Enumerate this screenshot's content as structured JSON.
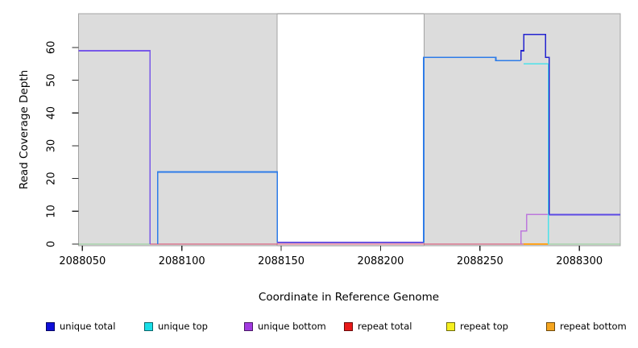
{
  "chart_data": {
    "type": "line",
    "title": "",
    "xlabel": "Coordinate in Reference Genome",
    "ylabel": "Read Coverage Depth",
    "xlim": [
      2088048,
      2088320.6
    ],
    "ylim": [
      0,
      70.3
    ],
    "grid": false,
    "legend_position": "bottom",
    "x_axis": {
      "ticks": [
        2088050,
        2088100,
        2088150,
        2088200,
        2088250,
        2088300
      ],
      "tick_labels": [
        "2088050",
        "2088100",
        "2088150",
        "2088200",
        "2088250",
        "2088300"
      ]
    },
    "y_axis": {
      "ticks": [
        0,
        10,
        20,
        30,
        40,
        50,
        60
      ],
      "tick_labels": [
        "0",
        "10",
        "20",
        "30",
        "40",
        "50",
        "60"
      ]
    },
    "masked_regions": [
      {
        "x0": 2088048,
        "x1": 2088148,
        "fill": "#dcdcdc",
        "stroke": "#a3a3a3"
      },
      {
        "x0": 2088222,
        "x1": 2088320.6,
        "fill": "#dcdcdc",
        "stroke": "#a3a3a3"
      }
    ],
    "series": [
      {
        "name": "unique total",
        "runs_x0_x1_depth": [
          [
            2088048,
            2088084,
            59
          ],
          [
            2088084,
            2088088,
            0
          ],
          [
            2088088,
            2088148,
            22
          ],
          [
            2088148,
            2088222,
            0
          ],
          [
            2088222,
            2088258,
            57
          ],
          [
            2088258,
            2088271,
            56
          ],
          [
            2088271,
            2088272,
            59
          ],
          [
            2088272,
            2088283,
            64
          ],
          [
            2088283,
            2088285,
            57
          ],
          [
            2088285,
            2088321,
            9
          ]
        ]
      },
      {
        "name": "unique top",
        "runs_x0_x1_depth": [
          [
            2088048,
            2088088,
            0
          ],
          [
            2088088,
            2088148,
            22
          ],
          [
            2088148,
            2088222,
            0
          ],
          [
            2088222,
            2088258,
            57
          ],
          [
            2088258,
            2088272,
            56
          ],
          [
            2088272,
            2088284,
            55
          ],
          [
            2088284,
            2088321,
            0
          ]
        ]
      },
      {
        "name": "unique bottom",
        "runs_x0_x1_depth": [
          [
            2088048,
            2088084,
            59
          ],
          [
            2088084,
            2088271,
            0
          ],
          [
            2088271,
            2088273,
            4
          ],
          [
            2088273,
            2088321,
            9
          ]
        ]
      },
      {
        "name": "repeat total",
        "runs_x0_x1_depth": [
          [
            2088048,
            2088321,
            0
          ]
        ]
      },
      {
        "name": "repeat top",
        "runs_x0_x1_depth": [
          [
            2088048,
            2088321,
            0
          ]
        ]
      },
      {
        "name": "repeat bottom",
        "runs_x0_x1_depth": [
          [
            2088048,
            2088321,
            0
          ]
        ]
      }
    ],
    "render_lines": [
      {
        "name": "baseline-left-green",
        "color": "#8fcf96",
        "w": 1.4,
        "pts": [
          [
            2088048,
            0
          ],
          [
            2088084,
            0
          ]
        ]
      },
      {
        "name": "baseline-right-green",
        "color": "#8fcf96",
        "w": 1.4,
        "pts": [
          [
            2088284.4,
            0
          ],
          [
            2088320.6,
            0
          ]
        ]
      },
      {
        "name": "repeat-total-red",
        "color": "#d9486b",
        "w": 1.4,
        "pts": [
          [
            2088084,
            0
          ],
          [
            2088272,
            0
          ]
        ]
      },
      {
        "name": "repeat-bottom-orange",
        "color": "#ffa41e",
        "w": 1.6,
        "pts": [
          [
            2088272,
            0
          ],
          [
            2088284.4,
            0
          ]
        ]
      },
      {
        "name": "unique-bottom-purple",
        "color": "#bc78dc",
        "w": 1.5,
        "pts": [
          [
            2088270.6,
            0
          ],
          [
            2088270.6,
            4
          ],
          [
            2088273.4,
            4
          ],
          [
            2088273.4,
            9
          ],
          [
            2088320.6,
            9
          ]
        ]
      },
      {
        "name": "unique-top-cyan",
        "color": "#4ce2ea",
        "w": 1.5,
        "pts": [
          [
            2088272,
            55
          ],
          [
            2088284.4,
            55
          ],
          [
            2088284.4,
            0
          ]
        ]
      },
      {
        "name": "unique-total-22",
        "color": "#2e7ce8",
        "w": 1.7,
        "pts": [
          [
            2088087.8,
            0
          ],
          [
            2088087.8,
            22
          ],
          [
            2088148,
            22
          ],
          [
            2088148,
            0.5
          ]
        ]
      },
      {
        "name": "unique-total-gap-zero",
        "color": "#6a55e0",
        "w": 1.6,
        "pts": [
          [
            2088148,
            0.5
          ],
          [
            2088221.7,
            0.5
          ]
        ]
      },
      {
        "name": "unique-total-57",
        "color": "#2e7ce8",
        "w": 1.7,
        "pts": [
          [
            2088221.7,
            0.5
          ],
          [
            2088221.7,
            57
          ],
          [
            2088258,
            57
          ],
          [
            2088258,
            56
          ],
          [
            2088270.6,
            56
          ]
        ]
      },
      {
        "name": "unique-total-59",
        "color": "#7859e8",
        "w": 1.7,
        "pts": [
          [
            2088048,
            59
          ],
          [
            2088084,
            59
          ],
          [
            2088084,
            0
          ]
        ]
      },
      {
        "name": "unique-total-spike",
        "color": "#2323cf",
        "w": 1.7,
        "pts": [
          [
            2088270.6,
            56
          ],
          [
            2088270.6,
            59
          ],
          [
            2088272,
            59
          ],
          [
            2088272,
            64
          ],
          [
            2088283,
            64
          ],
          [
            2088283,
            57
          ],
          [
            2088284.8,
            57
          ],
          [
            2088284.8,
            9
          ]
        ]
      },
      {
        "name": "unique-total-9",
        "color": "#5b49e4",
        "w": 1.7,
        "pts": [
          [
            2088284.8,
            9
          ],
          [
            2088320.6,
            9
          ]
        ]
      }
    ],
    "plot_box_stroke": "#858585",
    "tick_color": "#2b2b2b"
  },
  "legend": {
    "items": [
      {
        "label": "unique total",
        "color": "#0f0fd9"
      },
      {
        "label": "unique top",
        "color": "#19dfe8"
      },
      {
        "label": "unique bottom",
        "color": "#a23ae0"
      },
      {
        "label": "repeat total",
        "color": "#e81919"
      },
      {
        "label": "repeat top",
        "color": "#f5ef1f"
      },
      {
        "label": "repeat bottom",
        "color": "#f5a51f"
      }
    ]
  }
}
